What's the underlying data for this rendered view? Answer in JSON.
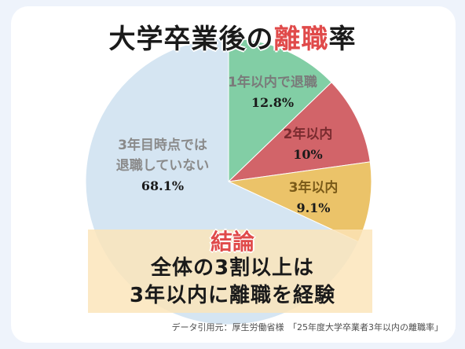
{
  "chart_data": {
    "type": "pie",
    "title_prefix": "大学卒業後の",
    "title_highlight": "離職",
    "title_suffix": "率",
    "slices": [
      {
        "label": "1年以内で退職",
        "value": 12.8,
        "value_label": "12.8%",
        "color": "#82cea5",
        "label_color": "#7a7a7a"
      },
      {
        "label": "2年以内",
        "value": 10.0,
        "value_label": "10%",
        "color": "#d26469",
        "label_color": "#7a2b2f"
      },
      {
        "label": "3年以内",
        "value": 9.1,
        "value_label": "9.1%",
        "color": "#ebc369",
        "label_color": "#7a5a18"
      },
      {
        "label": "3年目時点では\n退職していない",
        "value": 68.1,
        "value_label": "68.1%",
        "color": "#d5e5f2",
        "label_color": "#8a8a8a"
      }
    ]
  },
  "conclusion": {
    "heading": "結論",
    "line1": "全体の3割以上は",
    "line2": "3年以内に離職を経験"
  },
  "source": "データ引用元：厚生労働省様　「25年度大学卒業者3年以内の離職率」"
}
